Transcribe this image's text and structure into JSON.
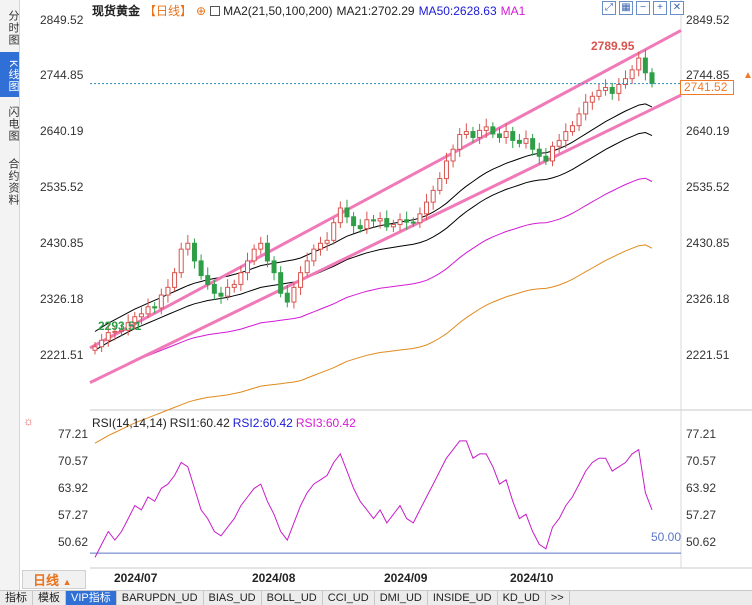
{
  "side_tabs": [
    {
      "label": "分时图",
      "active": false
    },
    {
      "label": "K线图",
      "active": true
    },
    {
      "label": "闪电图",
      "active": false
    },
    {
      "label": "合约资料",
      "active": false
    }
  ],
  "legend": {
    "symbol": "现货黄金",
    "period": "【日线】",
    "ma_group": "MA2(21,50,100,200)",
    "ma21": "MA21:2702.29",
    "ma50": "MA50:2628.63",
    "ma1": "MA1"
  },
  "rsi_legend": {
    "title": "RSI(14,14,14)",
    "rsi1": "RSI1:60.42",
    "rsi2": "RSI2:60.42",
    "rsi3": "RSI3:60.42"
  },
  "price_axis": [
    "2849.52",
    "2744.85",
    "2640.19",
    "2535.52",
    "2430.85",
    "2326.18",
    "2221.51"
  ],
  "rsi_axis": [
    "77.21",
    "70.57",
    "63.92",
    "57.27",
    "50.62"
  ],
  "current_price": "2741.52",
  "high_label": "2789.95",
  "low_label": "2293.51",
  "rsi_ref_label": "50.00",
  "dates": [
    "2024/07",
    "2024/08",
    "2024/09",
    "2024/10"
  ],
  "period_button": "日线",
  "bottom_tabs": [
    {
      "label": "指标",
      "active": false
    },
    {
      "label": "模板",
      "active": false
    },
    {
      "label": "VIP指标",
      "active": true
    },
    {
      "label": "BARUPDN_UD",
      "active": false
    },
    {
      "label": "BIAS_UD",
      "active": false
    },
    {
      "label": "BOLL_UD",
      "active": false
    },
    {
      "label": "CCI_UD",
      "active": false
    },
    {
      "label": "DMI_UD",
      "active": false
    },
    {
      "label": "INSIDE_UD",
      "active": false
    },
    {
      "label": "KD_UD",
      "active": false
    },
    {
      "label": ">>",
      "active": false
    }
  ],
  "colors": {
    "up": "#d9534f",
    "down": "#2e9e47",
    "ma21": "#000000",
    "ma50": "#1b1bd6",
    "ma100": "#d21bd6",
    "ma200": "#e08a1e",
    "channel": "#f07ab8",
    "rsi": "#c71ec9"
  },
  "chart_data": {
    "type": "candlestick",
    "y_range": [
      2200,
      2860
    ],
    "rsi_range": [
      47,
      79
    ],
    "closes": [
      2294,
      2305,
      2318,
      2320,
      2322,
      2335,
      2345,
      2350,
      2362,
      2360,
      2382,
      2395,
      2420,
      2460,
      2470,
      2440,
      2415,
      2400,
      2385,
      2380,
      2395,
      2400,
      2420,
      2440,
      2460,
      2470,
      2440,
      2420,
      2385,
      2370,
      2395,
      2420,
      2440,
      2460,
      2470,
      2475,
      2505,
      2530,
      2515,
      2500,
      2495,
      2510,
      2508,
      2512,
      2498,
      2502,
      2510,
      2506,
      2505,
      2520,
      2540,
      2560,
      2580,
      2610,
      2630,
      2655,
      2660,
      2650,
      2662,
      2668,
      2656,
      2650,
      2660,
      2645,
      2640,
      2648,
      2630,
      2618,
      2610,
      2635,
      2645,
      2660,
      2670,
      2690,
      2710,
      2720,
      2730,
      2735,
      2725,
      2740,
      2750,
      2765,
      2785,
      2760,
      2742
    ],
    "ma21": [
      2320,
      2327,
      2334,
      2340,
      2346,
      2352,
      2358,
      2363,
      2368,
      2373,
      2378,
      2383,
      2388,
      2393,
      2398,
      2402,
      2405,
      2408,
      2410,
      2412,
      2414,
      2417,
      2420,
      2424,
      2428,
      2432,
      2434,
      2436,
      2438,
      2440,
      2442,
      2445,
      2450,
      2455,
      2460,
      2465,
      2470,
      2476,
      2482,
      2486,
      2490,
      2494,
      2497,
      2500,
      2502,
      2504,
      2506,
      2508,
      2510,
      2513,
      2517,
      2523,
      2530,
      2538,
      2548,
      2558,
      2567,
      2575,
      2583,
      2590,
      2596,
      2601,
      2606,
      2610,
      2614,
      2618,
      2621,
      2623,
      2624,
      2627,
      2631,
      2636,
      2642,
      2649,
      2656,
      2663,
      2670,
      2677,
      2683,
      2689,
      2695,
      2700,
      2705,
      2707,
      2702
    ],
    "rsi": [
      49,
      52,
      55,
      53,
      55,
      58,
      61,
      60,
      63,
      62,
      65,
      66,
      68,
      71,
      70,
      65,
      60,
      58,
      55,
      54,
      56,
      58,
      61,
      63,
      65,
      66,
      62,
      59,
      55,
      53,
      57,
      61,
      64,
      66,
      67,
      68,
      71,
      73,
      69,
      65,
      62,
      60,
      58,
      60,
      57,
      59,
      61,
      58,
      57,
      60,
      63,
      66,
      69,
      72,
      74,
      76,
      76,
      72,
      73,
      73,
      70,
      66,
      67,
      62,
      58,
      59,
      55,
      52,
      51,
      56,
      58,
      61,
      63,
      66,
      69,
      71,
      72,
      72,
      69,
      70,
      71,
      73,
      74,
      64,
      60
    ]
  }
}
